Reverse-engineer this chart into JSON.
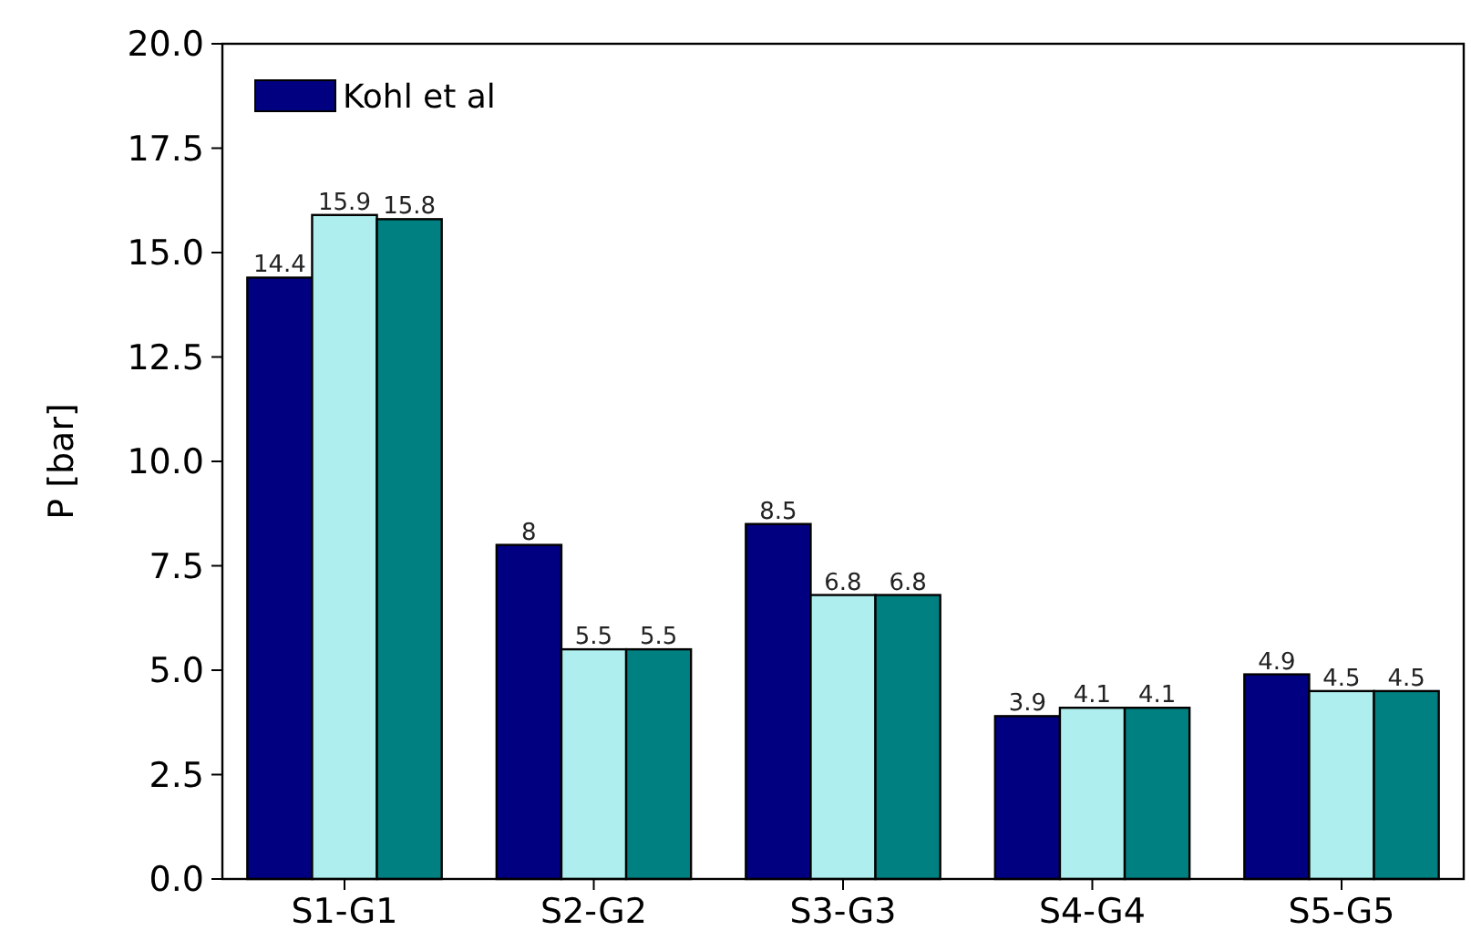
{
  "chart_data": {
    "type": "bar",
    "ylabel": "P [bar]",
    "categories": [
      "S1-G1",
      "S2-G2",
      "S3-G3",
      "S4-G4",
      "S5-G5"
    ],
    "series": [
      {
        "name": "Kohl et al",
        "color": "#000080",
        "values": [
          14.4,
          8,
          8.5,
          3.9,
          4.9
        ]
      },
      {
        "color": "#afeeee",
        "values": [
          15.9,
          5.5,
          6.8,
          4.1,
          4.5
        ]
      },
      {
        "color": "#008080",
        "values": [
          15.8,
          5.5,
          6.8,
          4.1,
          4.5
        ]
      }
    ],
    "ylim": [
      0,
      20
    ],
    "yticks": [
      {
        "value": 0,
        "label": "0.0"
      },
      {
        "value": 2.5,
        "label": "2.5"
      },
      {
        "value": 5,
        "label": "5.0"
      },
      {
        "value": 7.5,
        "label": "7.5"
      },
      {
        "value": 10,
        "label": "10.0"
      },
      {
        "value": 12.5,
        "label": "12.5"
      },
      {
        "value": 15,
        "label": "15.0"
      },
      {
        "value": 17.5,
        "label": "17.5"
      },
      {
        "value": 20,
        "label": "20.0"
      }
    ],
    "data_labels": true,
    "legend": "top left",
    "grid": false
  }
}
